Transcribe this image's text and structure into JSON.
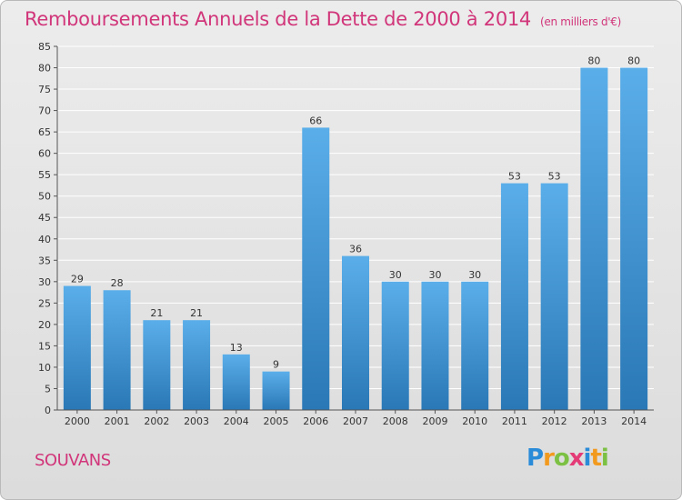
{
  "header": {
    "title": "Remboursements Annuels de la Dette de 2000 à 2014",
    "unit": "(en milliers d'€)"
  },
  "footer": {
    "place": "SOUVANS",
    "logo": "Proxiti"
  },
  "colors": {
    "title": "#d1357a",
    "bar_light": "#5aaee9",
    "bar_dark": "#2a78b6",
    "grid": "#ffffff"
  },
  "chart_data": {
    "type": "bar",
    "title": "Remboursements Annuels de la Dette de 2000 à 2014",
    "xlabel": "",
    "ylabel": "",
    "categories": [
      "2000",
      "2001",
      "2002",
      "2003",
      "2004",
      "2005",
      "2006",
      "2007",
      "2008",
      "2009",
      "2010",
      "2011",
      "2012",
      "2013",
      "2014"
    ],
    "values": [
      29,
      28,
      21,
      21,
      13,
      9,
      66,
      36,
      30,
      30,
      30,
      53,
      53,
      80,
      80
    ],
    "ylim": [
      0,
      85
    ],
    "yticks": [
      0,
      5,
      10,
      15,
      20,
      25,
      30,
      35,
      40,
      45,
      50,
      55,
      60,
      65,
      70,
      75,
      80,
      85
    ],
    "grid": true
  }
}
